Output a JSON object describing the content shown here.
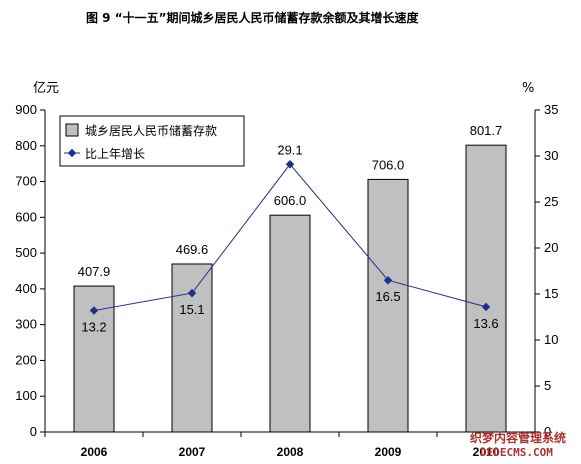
{
  "title": "图 9  “十一五”期间城乡居民人民币储蓄存款余额及其增长速度",
  "chart_data": {
    "type": "bar",
    "categories": [
      "2006",
      "2007",
      "2008",
      "2009",
      "2010"
    ],
    "series": [
      {
        "name": "城乡居民人民币储蓄存款",
        "type": "bar",
        "axis": "left",
        "color": "#c0c0c0",
        "values": [
          407.9,
          469.6,
          606.0,
          706.0,
          801.7
        ],
        "labels": [
          "407.9",
          "469.6",
          "606.0",
          "706.0",
          "801.7"
        ]
      },
      {
        "name": "比上年增长",
        "type": "line",
        "axis": "right",
        "color": "#1f2f8f",
        "values": [
          13.2,
          15.1,
          29.1,
          16.5,
          13.6
        ],
        "labels": [
          "13.2",
          "15.1",
          "29.1",
          "16.5",
          "13.6"
        ]
      }
    ],
    "left_axis": {
      "unit_label": "亿元",
      "ylim": [
        0,
        900
      ],
      "ticks": [
        "0",
        "100",
        "200",
        "300",
        "400",
        "500",
        "600",
        "700",
        "800",
        "900"
      ]
    },
    "right_axis": {
      "unit_label": "%",
      "ylim": [
        0,
        35
      ],
      "ticks": [
        "0",
        "5",
        "10",
        "15",
        "20",
        "25",
        "30",
        "35"
      ]
    },
    "grid": false,
    "legend_position": "top-left"
  },
  "watermark": {
    "line1": "织梦内容管理系统",
    "line2": "DEDECMS.COM"
  }
}
